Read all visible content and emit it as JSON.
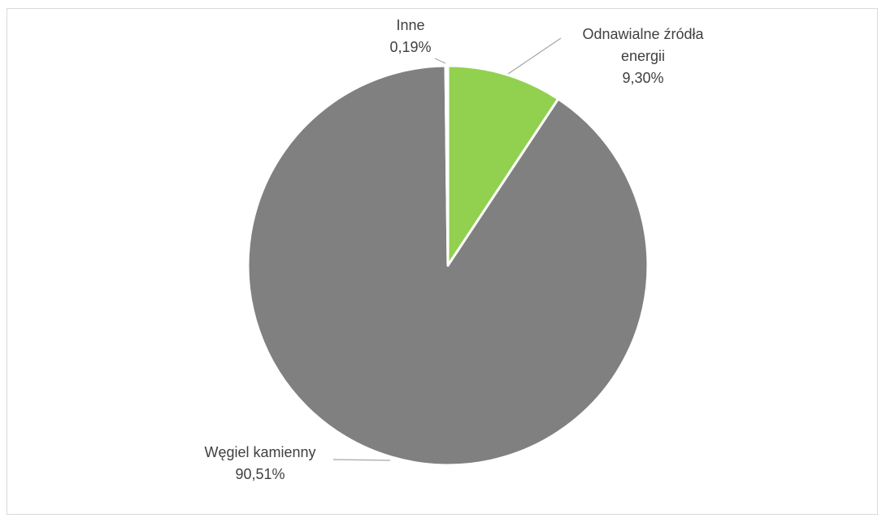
{
  "chart_data": {
    "type": "pie",
    "title": "",
    "start_angle_deg": 0,
    "direction": "clockwise",
    "slices": [
      {
        "label_lines": [
          "Odnawialne źródła",
          "energii"
        ],
        "value_label": "9,30%",
        "value": 9.3,
        "color": "#92d050"
      },
      {
        "label_lines": [
          "Węgiel kamienny"
        ],
        "value_label": "90,51%",
        "value": 90.51,
        "color": "#808080"
      },
      {
        "label_lines": [
          "Inne"
        ],
        "value_label": "0,19%",
        "value": 0.19,
        "color": "#a5a5a5"
      }
    ],
    "data_labels_with_leader_lines": true,
    "legend": "none"
  }
}
